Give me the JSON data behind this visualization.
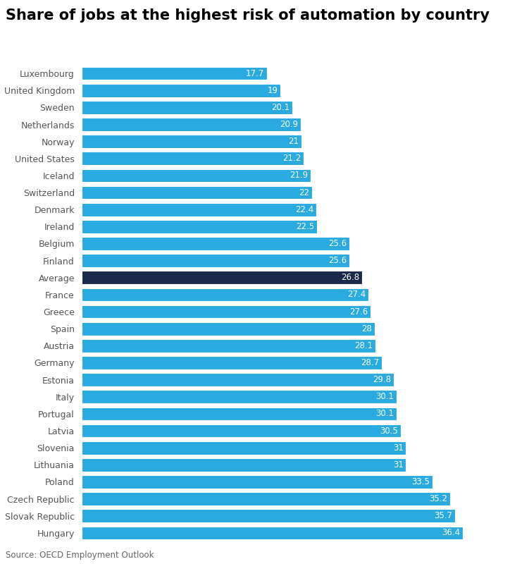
{
  "title": "Share of jobs at the highest risk of automation by country",
  "source": "Source: OECD Employment Outlook",
  "countries": [
    "Luxembourg",
    "United Kingdom",
    "Sweden",
    "Netherlands",
    "Norway",
    "United States",
    "Iceland",
    "Switzerland",
    "Denmark",
    "Ireland",
    "Belgium",
    "Finland",
    "Average",
    "France",
    "Greece",
    "Spain",
    "Austria",
    "Germany",
    "Estonia",
    "Italy",
    "Portugal",
    "Latvia",
    "Slovenia",
    "Lithuania",
    "Poland",
    "Czech Republic",
    "Slovak Republic",
    "Hungary"
  ],
  "values": [
    17.7,
    19,
    20.1,
    20.9,
    21,
    21.2,
    21.9,
    22,
    22.4,
    22.5,
    25.6,
    25.6,
    26.8,
    27.4,
    27.6,
    28,
    28.1,
    28.7,
    29.8,
    30.1,
    30.1,
    30.5,
    31,
    31,
    33.5,
    35.2,
    35.7,
    36.4
  ],
  "bar_color_default": "#29ABE2",
  "bar_color_average": "#1B2A4A",
  "label_color": "#FFFFFF",
  "title_color": "#000000",
  "source_color": "#666666",
  "background_color": "#FFFFFF",
  "title_fontsize": 15,
  "label_fontsize": 8.5,
  "country_fontsize": 9,
  "source_fontsize": 8.5,
  "bar_height": 0.78,
  "xlim_max": 42
}
